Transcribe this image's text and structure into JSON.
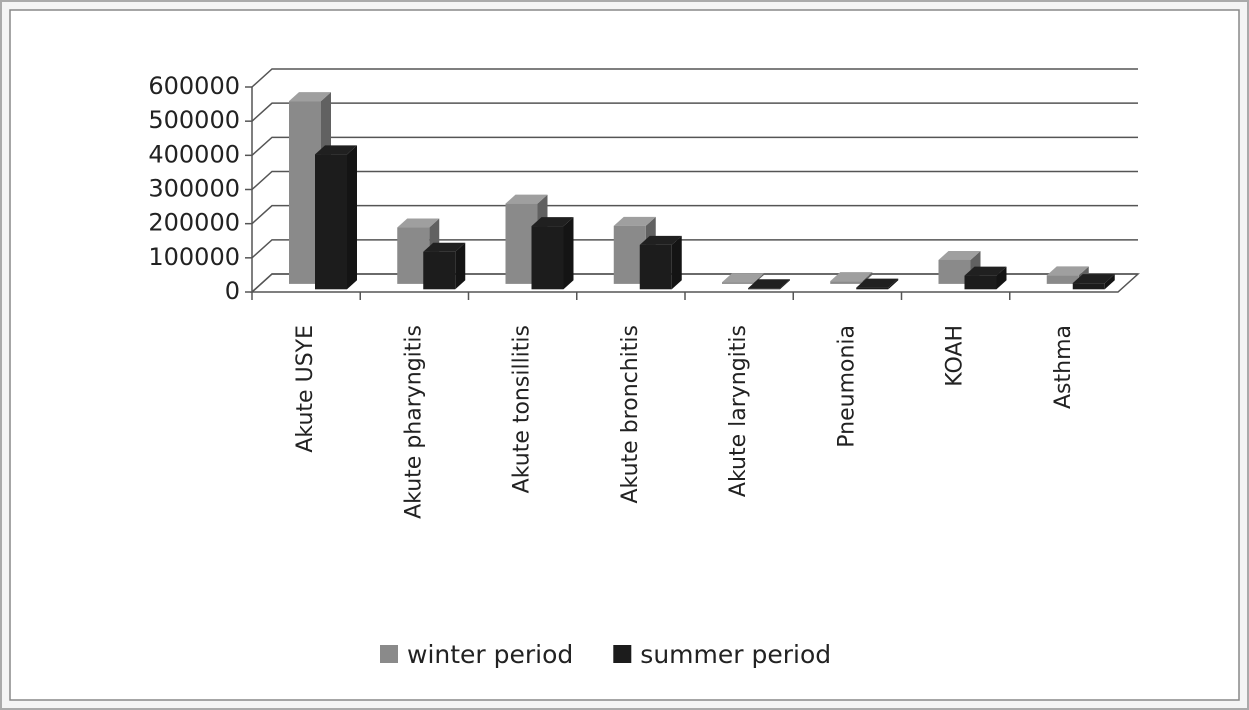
{
  "chart_data": {
    "type": "bar3d",
    "categories": [
      "Akute USYE",
      "Akute pharyngitis",
      "Akute tonsillitis",
      "Akute bronchitis",
      "Akute laryngitis",
      "Pneumonia",
      "KOAH",
      "Asthma"
    ],
    "series": [
      {
        "name": "winter period",
        "color": "#8a8a8a",
        "values": [
          535000,
          165000,
          235000,
          170000,
          5000,
          8000,
          70000,
          25000
        ]
      },
      {
        "name": "summer period",
        "color": "#1c1c1c",
        "values": [
          395000,
          110000,
          185000,
          130000,
          3000,
          5000,
          40000,
          18000
        ]
      }
    ],
    "ylim": [
      0,
      600000
    ],
    "yticks": [
      0,
      100000,
      200000,
      300000,
      400000,
      500000,
      600000
    ],
    "grid": true,
    "legend": "bottom"
  }
}
